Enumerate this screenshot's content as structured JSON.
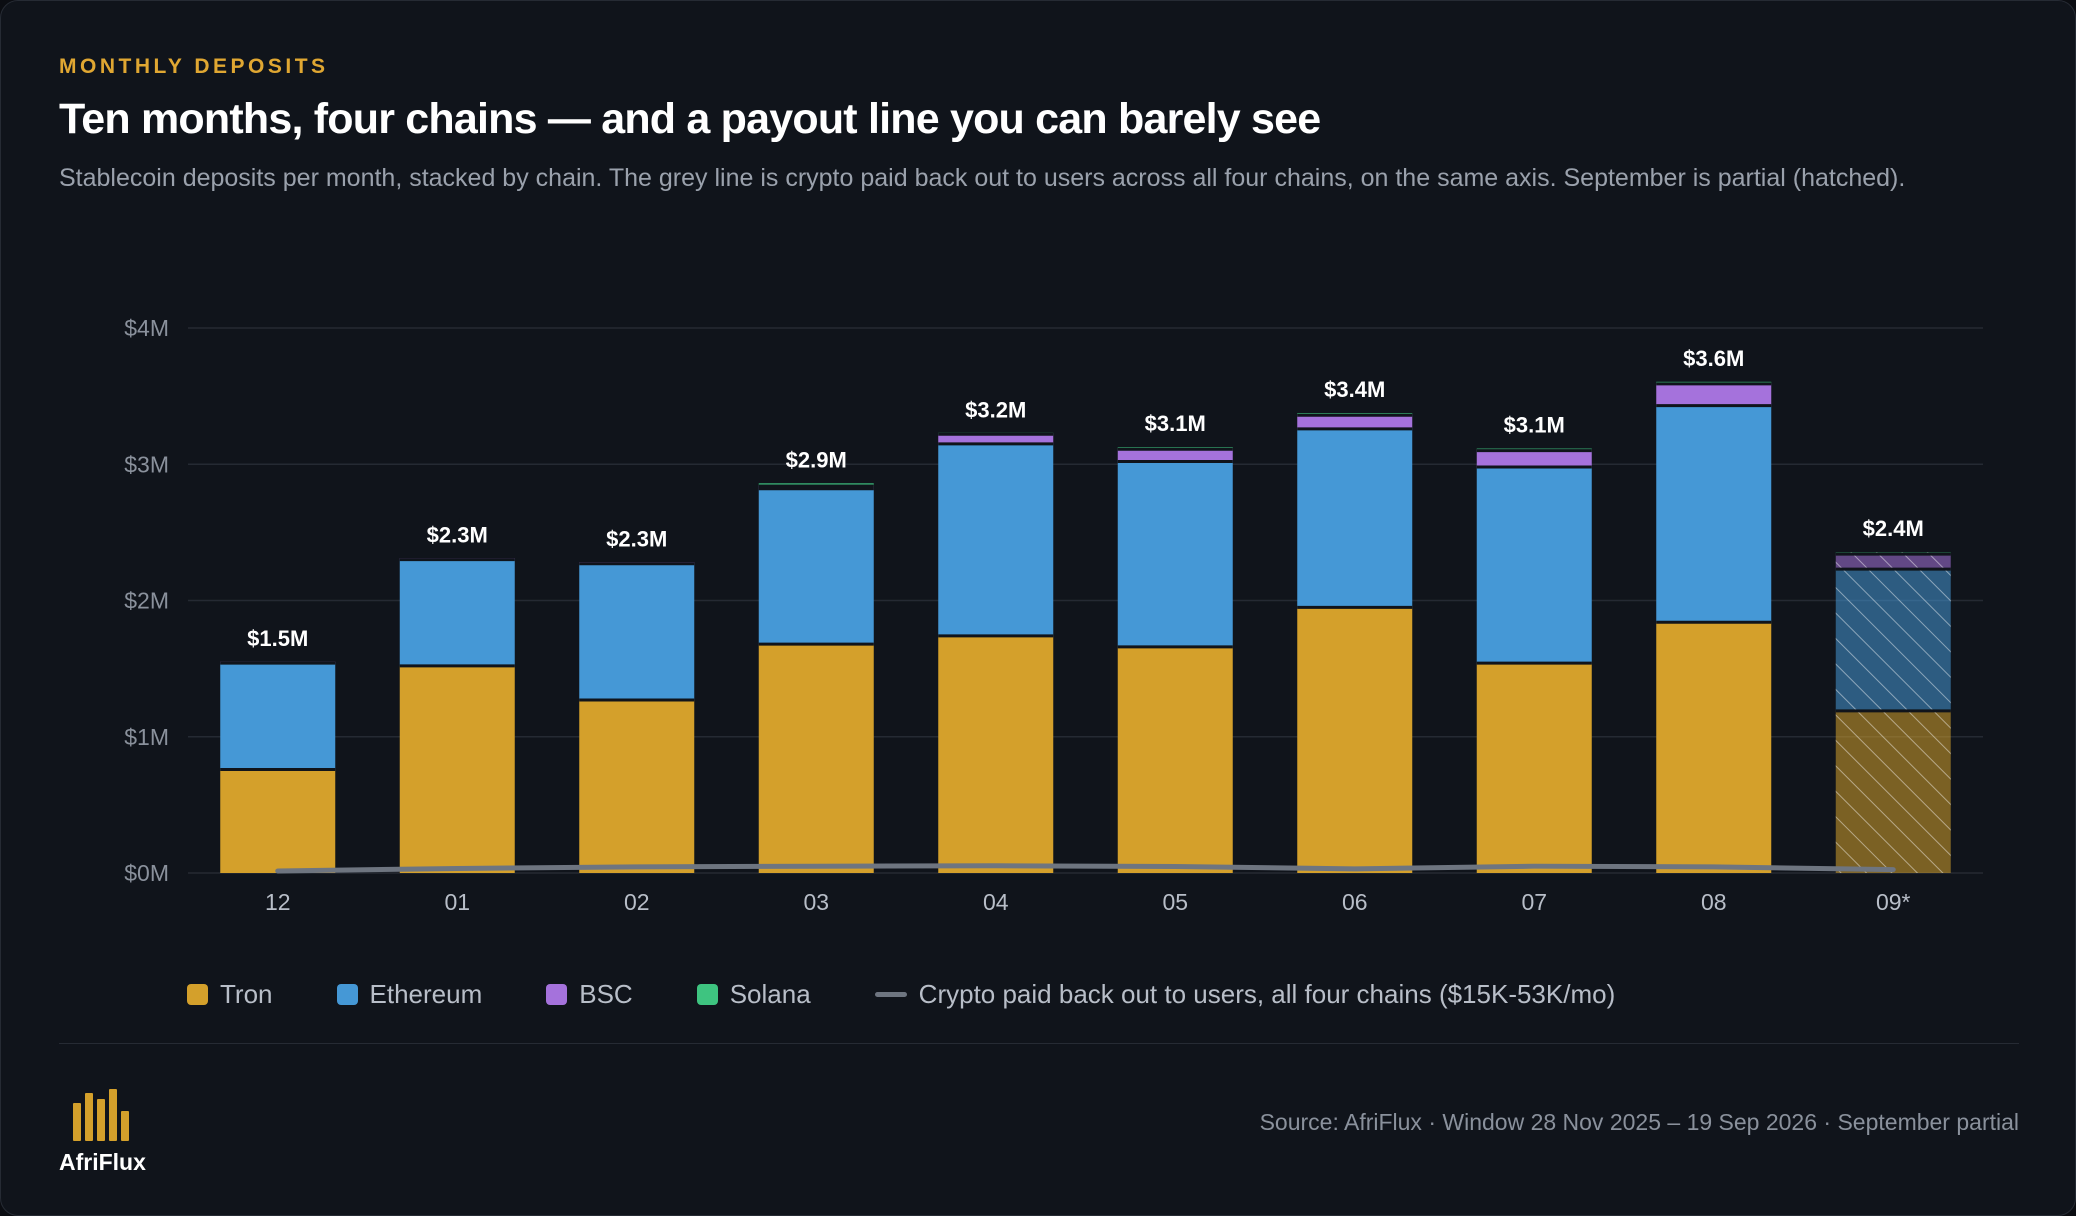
{
  "header": {
    "eyebrow": "MONTHLY DEPOSITS",
    "title": "Ten months, four chains — and a payout line you can barely see",
    "subtitle": "Stablecoin deposits per month, stacked by chain. The grey line is crypto paid back out to users across all four chains, on the same axis. September is partial (hatched)."
  },
  "chart_data": {
    "type": "bar",
    "stacked": true,
    "categories": [
      "12",
      "01",
      "02",
      "03",
      "04",
      "05",
      "06",
      "07",
      "08",
      "09*"
    ],
    "partial_category": "09*",
    "ylim": [
      0,
      4000000
    ],
    "yticks": [
      {
        "value": 0,
        "label": "$0M"
      },
      {
        "value": 1000000,
        "label": "$1M"
      },
      {
        "value": 2000000,
        "label": "$2M"
      },
      {
        "value": 3000000,
        "label": "$3M"
      },
      {
        "value": 4000000,
        "label": "$4M"
      }
    ],
    "grid": true,
    "series": [
      {
        "name": "Tron",
        "color": "#d4a02b",
        "values": [
          760000,
          1520000,
          1270000,
          1680000,
          1740000,
          1660000,
          1950000,
          1540000,
          1840000,
          1190000
        ]
      },
      {
        "name": "Ethereum",
        "color": "#4598d6",
        "values": [
          780000,
          780000,
          1000000,
          1140000,
          1410000,
          1360000,
          1310000,
          1440000,
          1590000,
          1040000
        ]
      },
      {
        "name": "BSC",
        "color": "#a572dc",
        "values": [
          10000,
          10000,
          10000,
          20000,
          70000,
          90000,
          100000,
          120000,
          160000,
          110000
        ]
      },
      {
        "name": "Solana",
        "color": "#3ec480",
        "values": [
          0,
          0,
          0,
          20000,
          5000,
          15000,
          15000,
          15000,
          15000,
          15000
        ]
      }
    ],
    "totals_labels": [
      "$1.5M",
      "$2.3M",
      "$2.3M",
      "$2.9M",
      "$3.2M",
      "$3.1M",
      "$3.4M",
      "$3.1M",
      "$3.6M",
      "$2.4M"
    ],
    "line": {
      "name": "Crypto paid back out to users, all four chains ($15K-53K/mo)",
      "color": "#6e7580",
      "values": [
        15000,
        33000,
        45000,
        50000,
        53000,
        48000,
        30000,
        50000,
        45000,
        25000
      ]
    },
    "legend_position": "bottom-left"
  },
  "footer": {
    "brand": "AfriFlux",
    "source": "Source: AfriFlux · Window 28 Nov 2025 – 19 Sep 2026 · September partial"
  }
}
